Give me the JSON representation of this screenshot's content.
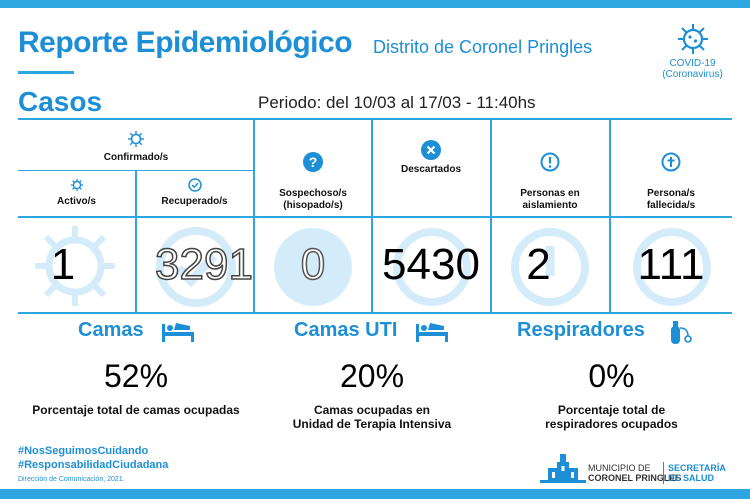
{
  "header": {
    "title": "Reporte Epidemiológico",
    "subtitle": "Distrito de Coronel Pringles",
    "covid_line1": "COVID-19",
    "covid_line2": "(Coronavirus)"
  },
  "casos": {
    "title": "Casos",
    "periodo": "Periodo: del 10/03 al 17/03 - 11:40hs",
    "confirmados_label": "Confirmado/s",
    "columns": [
      {
        "id": "activos",
        "label": "Activo/s",
        "value": "1",
        "icon": "virus-icon"
      },
      {
        "id": "recuperados",
        "label": "Recuperado/s",
        "value": "3291",
        "icon": "check-circle-icon"
      },
      {
        "id": "sospechosos",
        "label": "Sospechoso/s\n(hisopado/s)",
        "value": "0",
        "icon": "question-icon"
      },
      {
        "id": "descartados",
        "label": "Descartados",
        "value": "5430",
        "icon": "x-circle-icon"
      },
      {
        "id": "aislamiento",
        "label": "Personas en\naislamiento",
        "value": "2",
        "icon": "exclamation-icon"
      },
      {
        "id": "fallecidos",
        "label": "Persona/s\nfallecida/s",
        "value": "111",
        "icon": "cross-icon"
      }
    ]
  },
  "camas": {
    "title": "Camas",
    "value": "52%",
    "desc": "Porcentaje total de camas ocupadas"
  },
  "camas_uti": {
    "title": "Camas UTI",
    "value": "20%",
    "desc": "Camas ocupadas en\nUnidad de Terapia Intensiva"
  },
  "respiradores": {
    "title": "Respiradores",
    "value": "0%",
    "desc": "Porcentaje total de\nrespiradores ocupados"
  },
  "footer": {
    "hashtag1": "#NosSeguimosCuidando",
    "hashtag2": "#ResponsabilidadCiudadana",
    "credit": "Dirección de Comunicación, 2021.",
    "muni_line1": "MUNICIPIO DE",
    "muni_line2": "CORONEL PRINGLES",
    "sec_line1": "SECRETARÍA",
    "sec_line2": "DE SALUD"
  },
  "colors": {
    "accent": "#1d8fd6",
    "lines": "#2ea6e0",
    "circle_bg": "#d4ecf9"
  }
}
